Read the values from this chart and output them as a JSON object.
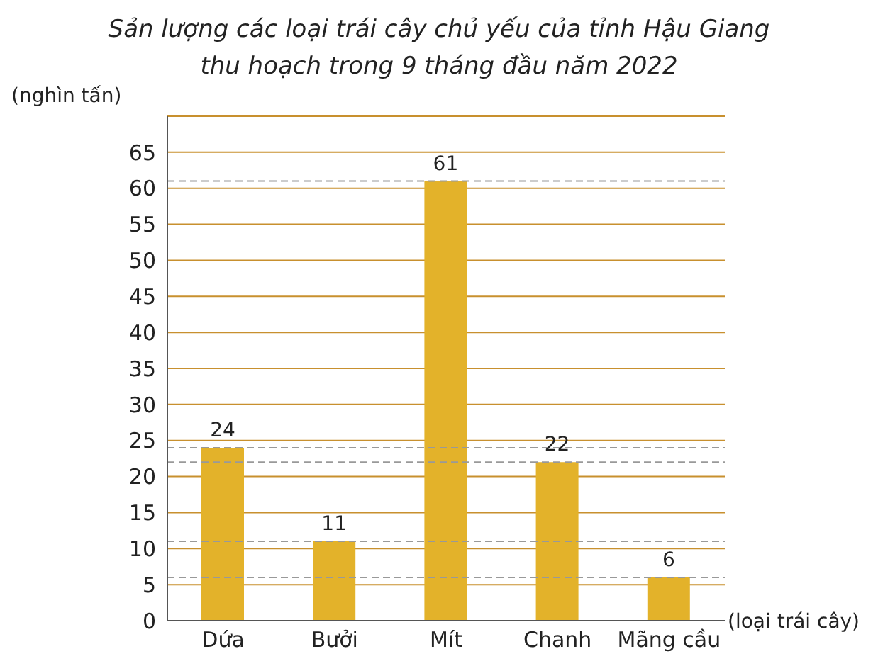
{
  "chart_data": {
    "type": "bar",
    "title": "Sản lượng các loại trái cây chủ yếu của tỉnh Hậu Giang\nthu hoạch trong 9 tháng đầu năm 2022",
    "ylabel": "(nghìn tấn)",
    "xlabel": "(loại trái cây)",
    "categories": [
      "Dứa",
      "Bưởi",
      "Mít",
      "Chanh",
      "Mãng cầu"
    ],
    "values": [
      24,
      11,
      61,
      22,
      6
    ],
    "color": "#e3b22a",
    "ylim": [
      0,
      70
    ],
    "yticks": [
      0,
      5,
      10,
      15,
      20,
      25,
      30,
      35,
      40,
      45,
      50,
      55,
      60,
      65
    ],
    "grid": "y",
    "data_labels": true,
    "ref_lines": [
      {
        "axis": "y",
        "value": 61,
        "color": "#999999",
        "line_style": "dashed"
      },
      {
        "axis": "y",
        "value": 24,
        "color": "#999999",
        "line_style": "dashed"
      },
      {
        "axis": "y",
        "value": 22,
        "color": "#999999",
        "line_style": "dashed"
      },
      {
        "axis": "y",
        "value": 11,
        "color": "#999999",
        "line_style": "dashed"
      },
      {
        "axis": "y",
        "value": 6,
        "color": "#999999",
        "line_style": "dashed"
      }
    ]
  }
}
